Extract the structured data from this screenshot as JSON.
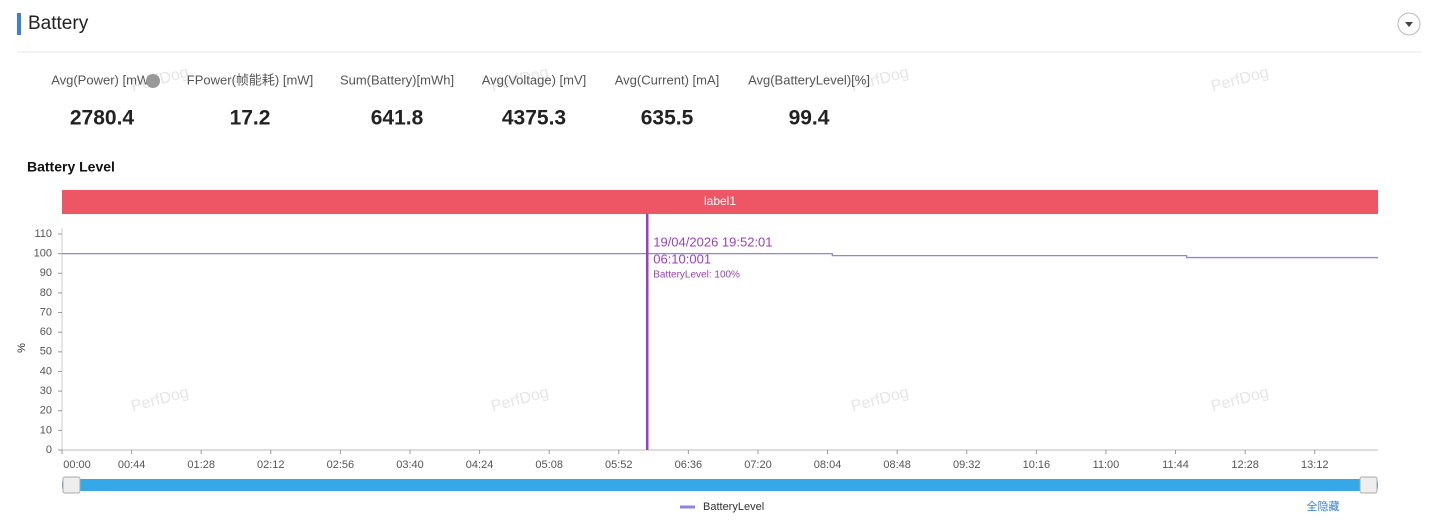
{
  "header": {
    "title": "Battery"
  },
  "watermark": "PerfDog",
  "stats": [
    {
      "label": "Avg(Power) [mW]",
      "value": 2780.4
    },
    {
      "label": "FPower(帧能耗) [mW]",
      "value": 17.2
    },
    {
      "label": "Sum(Battery)[mWh]",
      "value": 641.8
    },
    {
      "label": "Avg(Voltage) [mV]",
      "value": 4375.3
    },
    {
      "label": "Avg(Current) [mA]",
      "value": 635.5
    },
    {
      "label": "Avg(BatteryLevel)[%]",
      "value": 99.4
    }
  ],
  "chart_data": {
    "type": "line",
    "title": "Battery Level",
    "band_label": "label1",
    "ylabel": "%",
    "x": [
      0,
      487,
      487,
      711,
      711,
      832
    ],
    "series": [
      {
        "name": "BatteryLevel",
        "color": "#8f84e6",
        "values": [
          100,
          100,
          99,
          99,
          98,
          98
        ]
      }
    ],
    "xlim": [
      0,
      832
    ],
    "xticks": [
      {
        "value": 0,
        "label": "00:00"
      },
      {
        "value": 44,
        "label": "00:44"
      },
      {
        "value": 88,
        "label": "01:28"
      },
      {
        "value": 132,
        "label": "02:12"
      },
      {
        "value": 176,
        "label": "02:56"
      },
      {
        "value": 220,
        "label": "03:40"
      },
      {
        "value": 264,
        "label": "04:24"
      },
      {
        "value": 308,
        "label": "05:08"
      },
      {
        "value": 352,
        "label": "05:52"
      },
      {
        "value": 396,
        "label": "06:36"
      },
      {
        "value": 440,
        "label": "07:20"
      },
      {
        "value": 484,
        "label": "08:04"
      },
      {
        "value": 528,
        "label": "08:48"
      },
      {
        "value": 572,
        "label": "09:32"
      },
      {
        "value": 616,
        "label": "10:16"
      },
      {
        "value": 660,
        "label": "11:00"
      },
      {
        "value": 704,
        "label": "11:44"
      },
      {
        "value": 748,
        "label": "12:28"
      },
      {
        "value": 792,
        "label": "13:12"
      }
    ],
    "ylim": [
      0,
      110
    ],
    "yticks": [
      0,
      10,
      20,
      30,
      40,
      50,
      60,
      70,
      80,
      90,
      100,
      110
    ],
    "cursor_x": 370,
    "annotations": [
      "19/04/2026 19:52:01",
      "06:10:001",
      "BatteryLevel: 100%"
    ],
    "hide_all": "全隐藏"
  }
}
